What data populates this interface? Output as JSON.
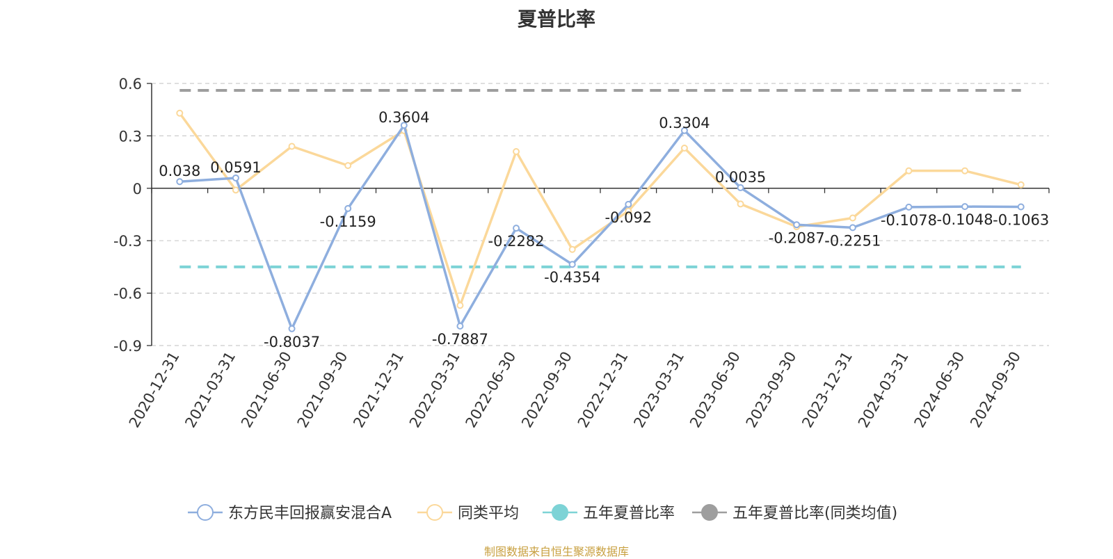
{
  "chart_data": {
    "type": "line",
    "title": "夏普比率",
    "categories": [
      "2020-12-31",
      "2021-03-31",
      "2021-06-30",
      "2021-09-30",
      "2021-12-31",
      "2022-03-31",
      "2022-06-30",
      "2022-09-30",
      "2022-12-31",
      "2023-03-31",
      "2023-06-30",
      "2023-09-30",
      "2023-12-31",
      "2024-03-31",
      "2024-06-30",
      "2024-09-30"
    ],
    "yticks": [
      "0.6",
      "0.3",
      "0",
      "-0.3",
      "-0.6",
      "-0.9"
    ],
    "ylim": [
      -0.9,
      0.6
    ],
    "grid": true,
    "legend_position": "bottom",
    "series": [
      {
        "name": "东方民丰回报赢安混合A",
        "color": "#8eaede",
        "values": [
          0.038,
          0.0591,
          -0.8037,
          -0.1159,
          0.3604,
          -0.7887,
          -0.2282,
          -0.4354,
          -0.092,
          0.3304,
          0.0035,
          -0.2087,
          -0.2251,
          -0.1078,
          -0.1048,
          -0.1063
        ],
        "labels": [
          "0.038",
          "0.0591",
          "-0.8037",
          "-0.1159",
          "0.3604",
          "-0.7887",
          "-0.2282",
          "-0.4354",
          "-0.092",
          "0.3304",
          "0.0035",
          "-0.2087",
          "-0.2251",
          "-0.1078",
          "-0.1048",
          "-0.1063"
        ]
      },
      {
        "name": "同类平均",
        "color": "#fbd89a",
        "values": [
          0.43,
          -0.01,
          0.24,
          0.13,
          0.33,
          -0.67,
          0.21,
          -0.35,
          -0.13,
          0.23,
          -0.09,
          -0.22,
          -0.17,
          0.1,
          0.1,
          0.02
        ]
      },
      {
        "name": "五年夏普比率",
        "color": "#7dd3d6",
        "value": -0.45
      },
      {
        "name": "五年夏普比率(同类均值)",
        "color": "#9e9e9e",
        "value": 0.56
      }
    ]
  },
  "source_note": "制图数据来自恒生聚源数据库"
}
